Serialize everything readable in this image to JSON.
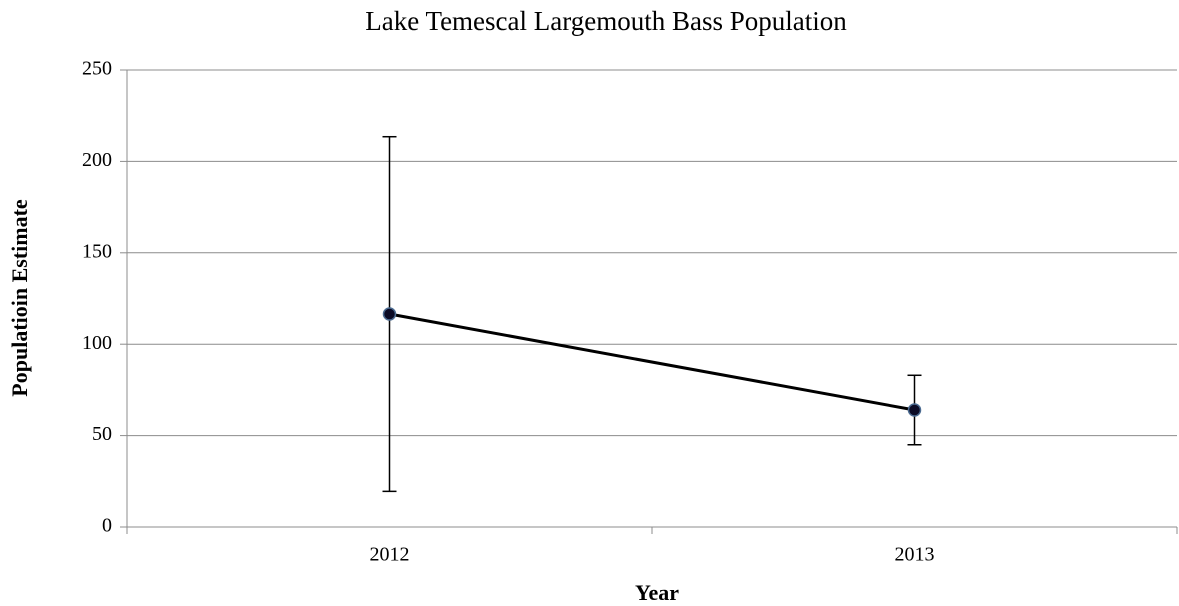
{
  "chart_data": {
    "type": "line",
    "title": "Lake Temescal Largemouth Bass Population",
    "x_label": "Year",
    "y_label": "Populatioin Estimate",
    "categories": [
      "2012",
      "2013"
    ],
    "values": [
      116.5,
      64
    ],
    "errors": [
      97,
      19
    ],
    "color": "#000000",
    "marker_color": "#0b0b26",
    "ylim": [
      0,
      250
    ],
    "yticks": [
      0,
      50,
      100,
      150,
      200,
      250
    ],
    "grid": true
  }
}
